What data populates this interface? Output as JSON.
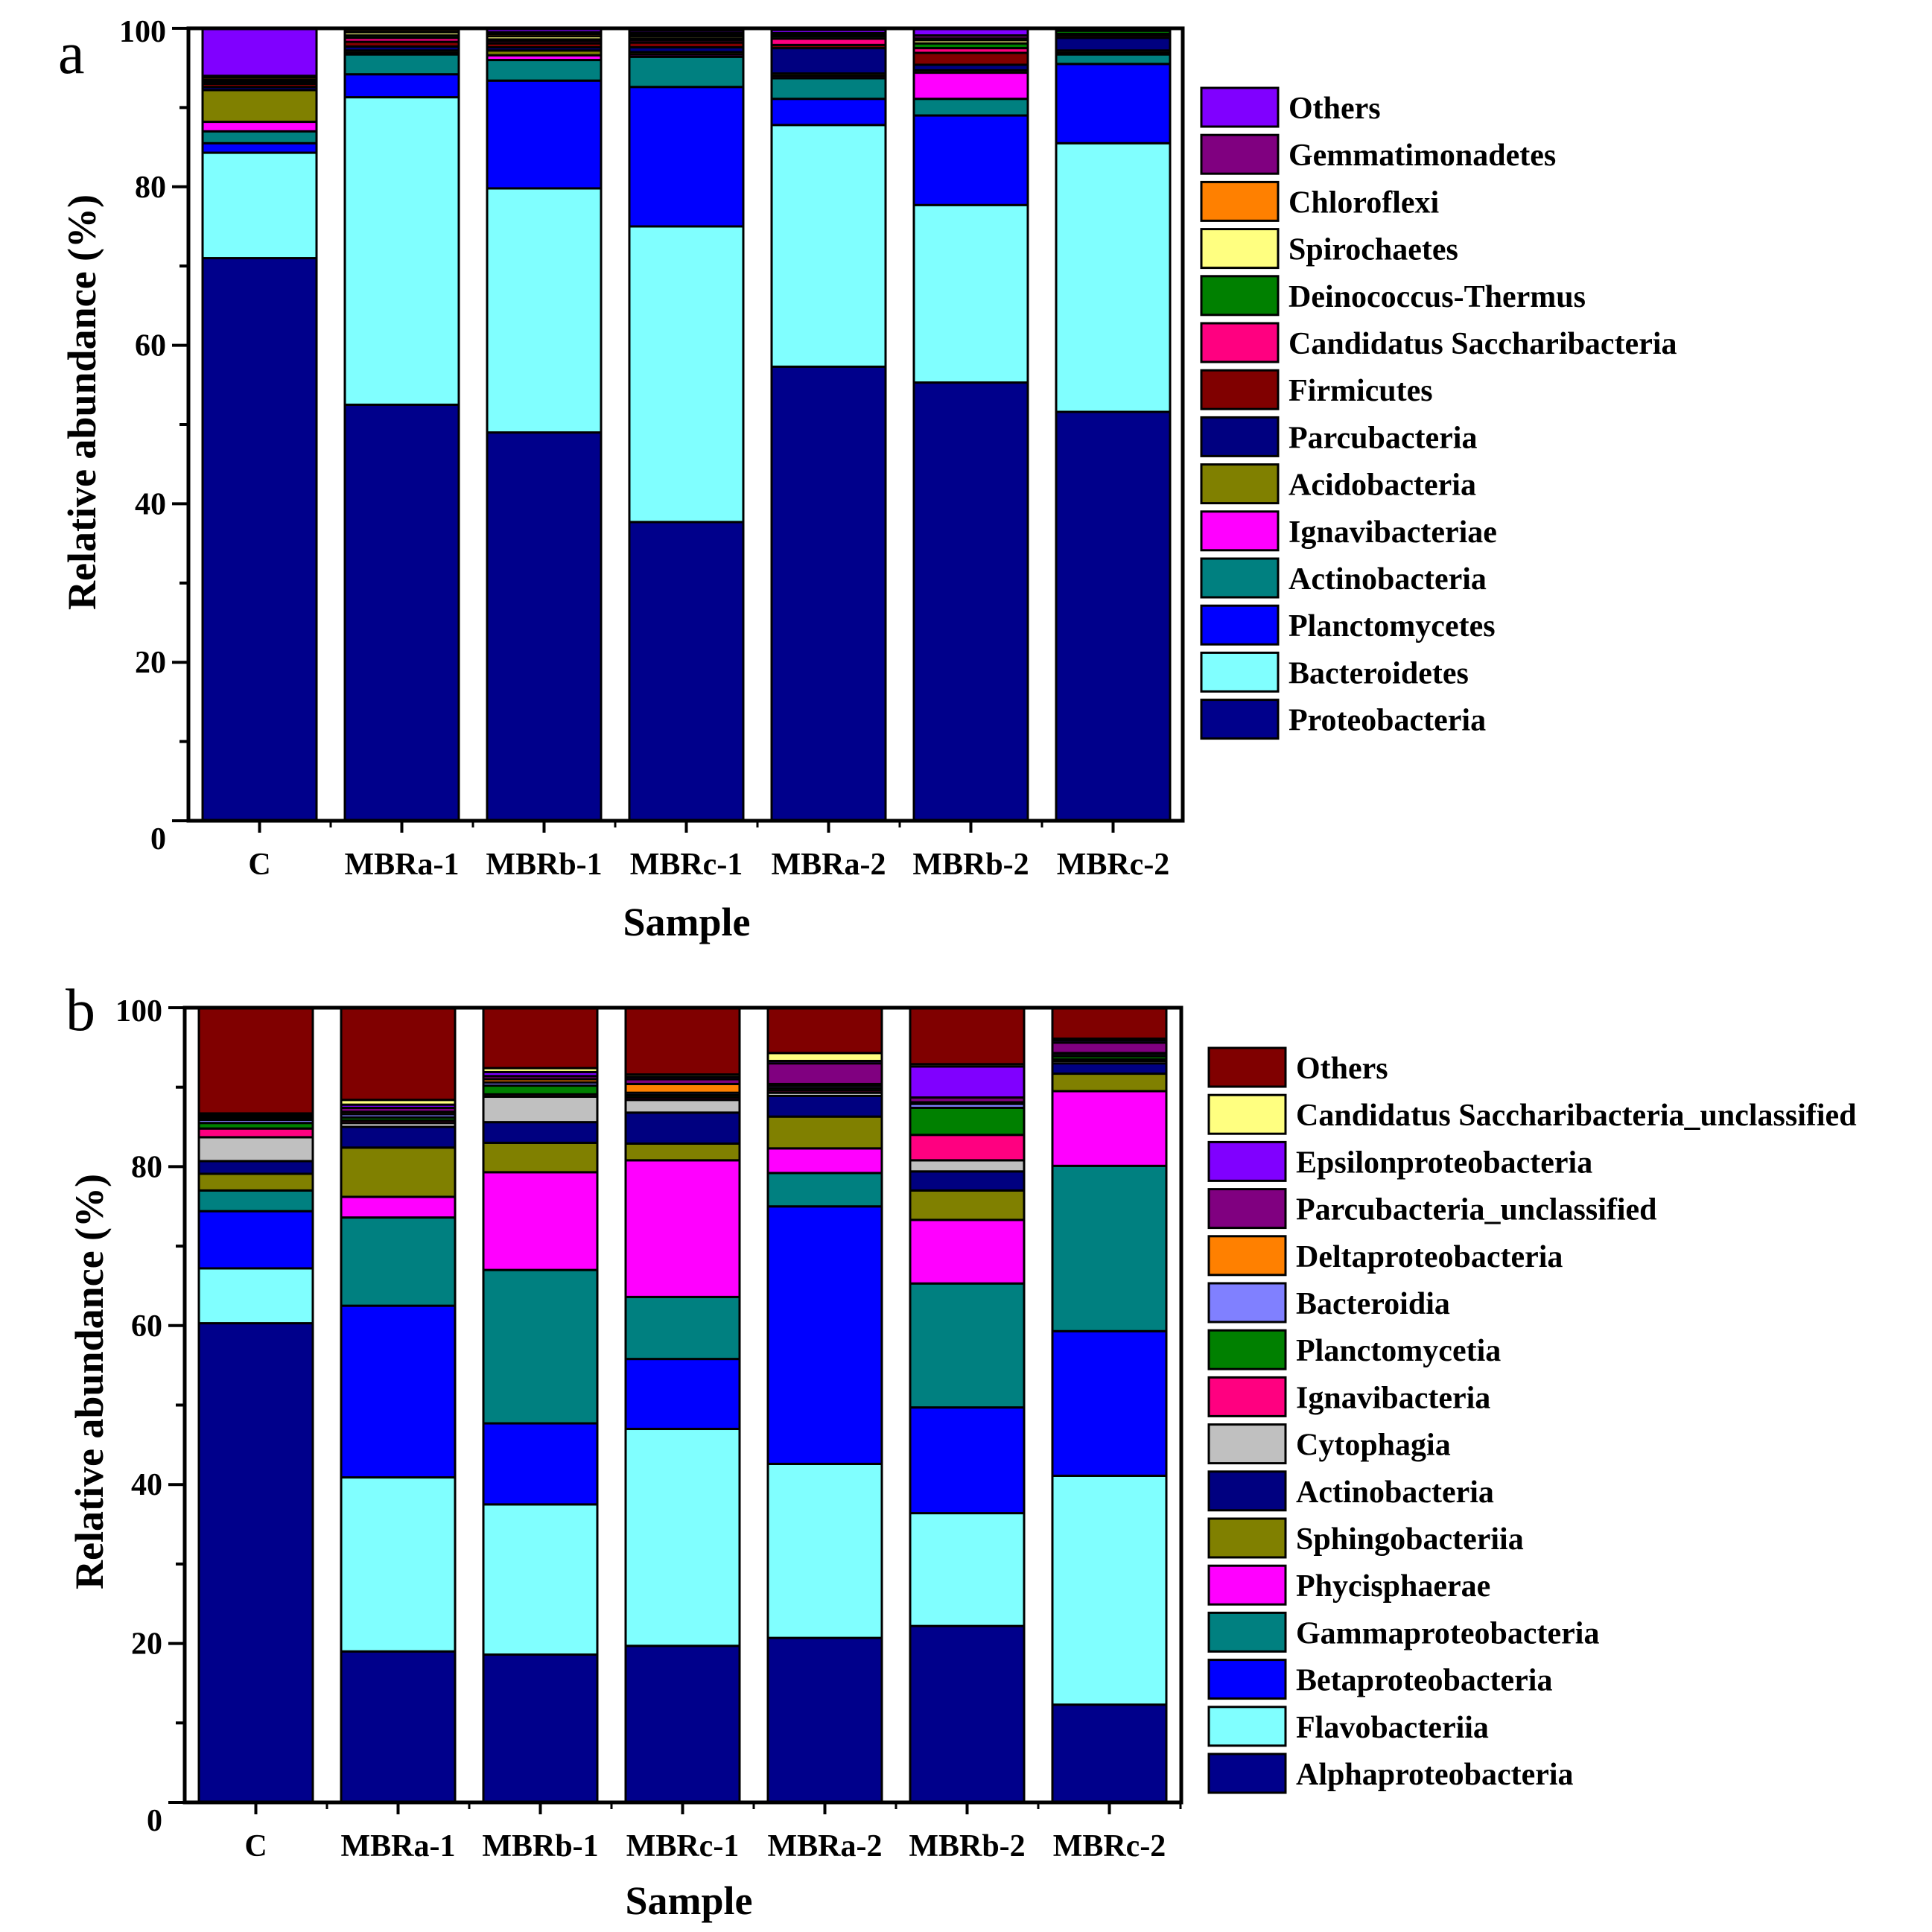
{
  "figure": {
    "charts": [
      {
        "panel": "a",
        "xlabel": "Sample",
        "ylabel": "Relative abundance (%)"
      },
      {
        "panel": "b",
        "xlabel": "Sample",
        "ylabel": "Relative abundance (%)"
      }
    ]
  },
  "chart_data": [
    {
      "type": "bar",
      "stacked": true,
      "panel": "a",
      "title": "",
      "xlabel": "Sample",
      "ylabel": "Relative abundance (%)",
      "ylim": [
        0,
        100
      ],
      "yticks": [
        0,
        20,
        40,
        60,
        80,
        100
      ],
      "grid": false,
      "legend": "right",
      "categories": [
        "C",
        "MBRa-1",
        "MBRb-1",
        "MBRc-1",
        "MBRa-2",
        "MBRb-2",
        "MBRc-2"
      ],
      "series": [
        {
          "name": "Proteobacteria",
          "color": "#00008B",
          "values": [
            71.0,
            52.5,
            49.0,
            37.7,
            57.3,
            55.3,
            51.6
          ]
        },
        {
          "name": "Bacteroidetes",
          "color": "#80FFFF",
          "values": [
            13.3,
            38.8,
            30.8,
            37.3,
            30.5,
            22.4,
            33.9
          ]
        },
        {
          "name": "Planctomycetes",
          "color": "#0000FF",
          "values": [
            1.2,
            2.9,
            13.6,
            17.6,
            3.3,
            11.3,
            10.0
          ]
        },
        {
          "name": "Actinobacteria",
          "color": "#008080",
          "values": [
            1.5,
            2.5,
            2.6,
            3.8,
            2.6,
            2.1,
            1.2
          ]
        },
        {
          "name": "Ignavibacteriae",
          "color": "#FF00FF",
          "values": [
            1.2,
            0.2,
            0.6,
            0.3,
            0.3,
            3.3,
            0.2
          ]
        },
        {
          "name": "Acidobacteria",
          "color": "#808000",
          "values": [
            4.0,
            0.3,
            0.6,
            0.3,
            0.3,
            0.3,
            0.3
          ]
        },
        {
          "name": "Parcubacteria",
          "color": "#000080",
          "values": [
            0.4,
            0.5,
            0.4,
            0.6,
            3.2,
            0.7,
            1.6
          ]
        },
        {
          "name": "Firmicutes",
          "color": "#800000",
          "values": [
            0.4,
            0.6,
            0.5,
            0.6,
            0.4,
            1.5,
            0.3
          ]
        },
        {
          "name": "Candidatus Saccharibacteria",
          "color": "#FF0080",
          "values": [
            0.2,
            0.5,
            0.3,
            0.3,
            0.8,
            0.6,
            0.2
          ]
        },
        {
          "name": "Deinococcus-Thermus",
          "color": "#008000",
          "values": [
            0.1,
            0.3,
            0.2,
            0.2,
            0.3,
            0.6,
            0.4
          ]
        },
        {
          "name": "Spirochaetes",
          "color": "#FFFF80",
          "values": [
            0.2,
            0.4,
            0.4,
            0.3,
            0.2,
            0.4,
            0.1
          ]
        },
        {
          "name": "Chloroflexi",
          "color": "#FF8000",
          "values": [
            0.3,
            0.3,
            0.3,
            0.2,
            0.1,
            0.2,
            0.1
          ]
        },
        {
          "name": "Gemmatimonadetes",
          "color": "#800080",
          "values": [
            0.2,
            0.2,
            0.2,
            0.2,
            0.1,
            0.4,
            0.1
          ]
        },
        {
          "name": "Others",
          "color": "#8000FF",
          "values": [
            6.3,
            0.3,
            0.5,
            0.3,
            0.4,
            0.9,
            0.3
          ]
        }
      ]
    },
    {
      "type": "bar",
      "stacked": true,
      "panel": "b",
      "title": "",
      "xlabel": "Sample",
      "ylabel": "Relative abundance (%)",
      "ylim": [
        0,
        100
      ],
      "yticks": [
        0,
        20,
        40,
        60,
        80,
        100
      ],
      "grid": false,
      "legend": "right",
      "categories": [
        "C",
        "MBRa-1",
        "MBRb-1",
        "MBRc-1",
        "MBRa-2",
        "MBRb-2",
        "MBRc-2"
      ],
      "series": [
        {
          "name": "Alphaproteobacteria",
          "color": "#00008B",
          "values": [
            60.3,
            19.0,
            18.6,
            19.7,
            20.7,
            22.2,
            12.3
          ]
        },
        {
          "name": "Flavobacteriia",
          "color": "#80FFFF",
          "values": [
            6.9,
            21.9,
            18.9,
            27.3,
            21.9,
            14.2,
            28.8
          ]
        },
        {
          "name": "Betaproteobacteria",
          "color": "#0000FF",
          "values": [
            7.2,
            21.6,
            10.2,
            8.8,
            32.4,
            13.3,
            18.2
          ]
        },
        {
          "name": "Gammaproteobacteria",
          "color": "#008080",
          "values": [
            2.6,
            11.1,
            19.3,
            7.8,
            4.2,
            15.6,
            20.8
          ]
        },
        {
          "name": "Phycisphaerae",
          "color": "#FF00FF",
          "values": [
            0.0,
            2.6,
            12.3,
            17.2,
            3.1,
            8.0,
            9.4
          ]
        },
        {
          "name": "Sphingobacteriia",
          "color": "#808000",
          "values": [
            2.1,
            6.2,
            3.7,
            2.1,
            4.0,
            3.7,
            2.2
          ]
        },
        {
          "name": "Actinobacteria",
          "color": "#000080",
          "values": [
            1.6,
            2.6,
            2.6,
            3.9,
            2.6,
            2.4,
            1.3
          ]
        },
        {
          "name": "Cytophagia",
          "color": "#C0C0C0",
          "values": [
            3.0,
            0.5,
            3.2,
            1.6,
            0.4,
            1.4,
            0.3
          ]
        },
        {
          "name": "Ignavibacteria",
          "color": "#FF0080",
          "values": [
            1.1,
            0.3,
            0.3,
            0.3,
            0.3,
            3.2,
            0.2
          ]
        },
        {
          "name": "Planctomycetia",
          "color": "#008000",
          "values": [
            0.7,
            0.4,
            1.1,
            0.3,
            0.3,
            3.4,
            0.4
          ]
        },
        {
          "name": "Bacteroidia",
          "color": "#8080FF",
          "values": [
            0.4,
            0.4,
            0.4,
            0.3,
            0.3,
            0.5,
            0.3
          ]
        },
        {
          "name": "Deltaproteobacteria",
          "color": "#FF8000",
          "values": [
            0.2,
            0.3,
            0.4,
            1.1,
            0.2,
            0.2,
            0.1
          ]
        },
        {
          "name": "Parcubacteria_unclassified",
          "color": "#800080",
          "values": [
            0.2,
            0.5,
            0.4,
            0.6,
            2.6,
            0.6,
            1.3
          ]
        },
        {
          "name": "Epsilonproteobacteria",
          "color": "#8000FF",
          "values": [
            0.2,
            0.4,
            0.5,
            0.3,
            0.3,
            3.9,
            0.3
          ]
        },
        {
          "name": "Candidatus Saccharibacteria_unclassified",
          "color": "#FFFF80",
          "values": [
            0.2,
            0.6,
            0.5,
            0.3,
            1.0,
            0.3,
            0.2
          ]
        },
        {
          "name": "Others",
          "color": "#800000",
          "values": [
            13.3,
            11.6,
            7.6,
            8.4,
            5.7,
            7.1,
            3.9
          ]
        }
      ]
    }
  ]
}
